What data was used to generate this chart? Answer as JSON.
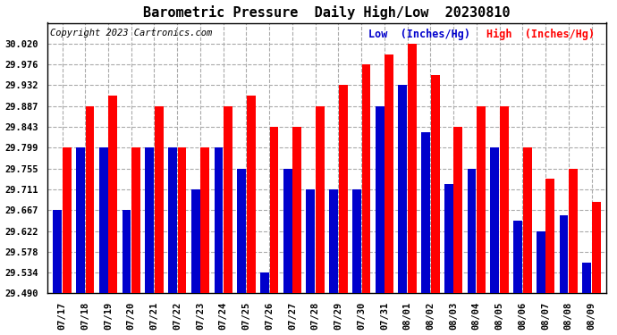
{
  "title": "Barometric Pressure  Daily High/Low  20230810",
  "copyright": "Copyright 2023 Cartronics.com",
  "legend_low": "Low  (Inches/Hg)",
  "legend_high": "High  (Inches/Hg)",
  "dates": [
    "07/17",
    "07/18",
    "07/19",
    "07/20",
    "07/21",
    "07/22",
    "07/23",
    "07/24",
    "07/25",
    "07/26",
    "07/27",
    "07/28",
    "07/29",
    "07/30",
    "07/31",
    "08/01",
    "08/02",
    "08/03",
    "08/04",
    "08/05",
    "08/06",
    "08/07",
    "08/08",
    "08/09"
  ],
  "high": [
    29.799,
    29.887,
    29.91,
    29.799,
    29.887,
    29.799,
    29.799,
    29.887,
    29.91,
    29.843,
    29.843,
    29.887,
    29.932,
    29.976,
    29.997,
    30.02,
    29.954,
    29.843,
    29.887,
    29.887,
    29.799,
    29.733,
    29.755,
    29.685
  ],
  "low": [
    29.667,
    29.799,
    29.799,
    29.667,
    29.799,
    29.799,
    29.711,
    29.799,
    29.755,
    29.534,
    29.755,
    29.711,
    29.711,
    29.711,
    29.887,
    29.932,
    29.832,
    29.722,
    29.755,
    29.799,
    29.644,
    29.622,
    29.655,
    29.556
  ],
  "bar_color_high": "#ff0000",
  "bar_color_low": "#0000cc",
  "background_color": "#ffffff",
  "grid_color": "#aaaaaa",
  "ylim_min": 29.49,
  "ylim_max": 30.064,
  "yticks": [
    29.49,
    29.534,
    29.578,
    29.622,
    29.667,
    29.711,
    29.755,
    29.799,
    29.843,
    29.887,
    29.932,
    29.976,
    30.02
  ],
  "title_fontsize": 11,
  "tick_fontsize": 7.5,
  "legend_fontsize": 8.5,
  "copyright_fontsize": 7.5
}
